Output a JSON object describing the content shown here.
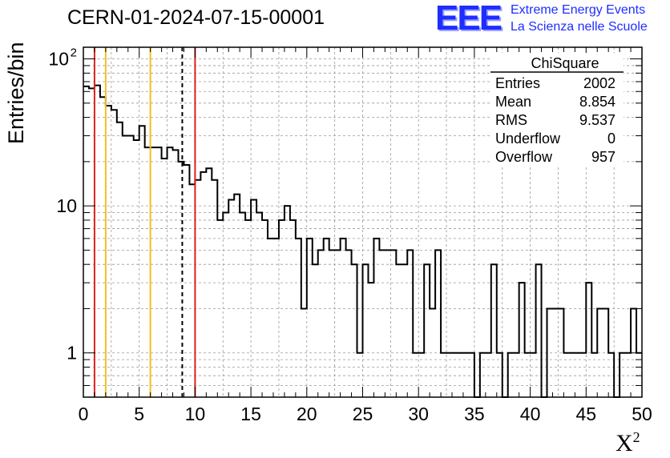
{
  "header": {
    "run_title": "CERN-01-2024-07-15-00001",
    "logo_text": "EEE",
    "logo_line1": "Extreme Energy Events",
    "logo_line2": "La Scienza nelle Scuole",
    "logo_color": "#1f2dff"
  },
  "chart_data": {
    "type": "histogram",
    "title": "",
    "xlabel": "X",
    "xlabel_superscript": "2",
    "ylabel": "Entries/bin",
    "xlim": [
      0,
      50
    ],
    "ylim": [
      0.5,
      120
    ],
    "yscale": "log",
    "grid": true,
    "bin_width": 0.5,
    "x_ticks": [
      0,
      5,
      10,
      15,
      20,
      25,
      30,
      35,
      40,
      45,
      50
    ],
    "y_ticks": [
      {
        "value": 1,
        "label": "1"
      },
      {
        "value": 10,
        "label": "10"
      },
      {
        "value": 100,
        "label": "10",
        "exponent": "2"
      }
    ],
    "values": [
      65,
      63,
      66,
      55,
      48,
      45,
      37,
      30,
      30,
      28,
      35,
      25,
      25,
      25,
      21,
      25,
      24,
      20,
      19,
      14,
      15,
      17,
      18,
      15,
      8,
      9,
      11,
      12,
      9,
      8,
      11,
      9,
      8,
      6,
      6,
      8,
      10,
      8,
      6,
      2,
      6,
      4,
      5,
      6,
      5,
      5,
      6,
      5,
      4,
      1,
      4,
      3,
      6,
      5,
      5,
      5,
      4,
      4,
      5,
      1,
      1,
      4,
      2,
      5,
      1,
      1,
      1,
      1,
      1,
      1,
      0,
      1,
      1,
      4,
      1,
      0,
      1,
      1,
      3,
      1,
      1,
      4,
      0,
      2,
      2,
      2,
      1,
      1,
      1,
      1,
      3,
      1,
      2,
      2,
      1,
      0,
      1,
      1,
      2,
      1
    ],
    "vertical_lines": [
      {
        "x": 1,
        "color": "#e02020",
        "style": "solid"
      },
      {
        "x": 2,
        "color": "#f0c020",
        "style": "solid"
      },
      {
        "x": 6,
        "color": "#f0c020",
        "style": "solid"
      },
      {
        "x": 8.854,
        "color": "#000000",
        "style": "dashed"
      },
      {
        "x": 10,
        "color": "#e02020",
        "style": "solid"
      }
    ],
    "stats_box": {
      "title": "ChiSquare",
      "rows": [
        {
          "label": "Entries",
          "value": "2002"
        },
        {
          "label": "Mean",
          "value": "8.854"
        },
        {
          "label": "RMS",
          "value": "9.537"
        },
        {
          "label": "Underflow",
          "value": "0"
        },
        {
          "label": "Overflow",
          "value": "957"
        }
      ]
    }
  }
}
